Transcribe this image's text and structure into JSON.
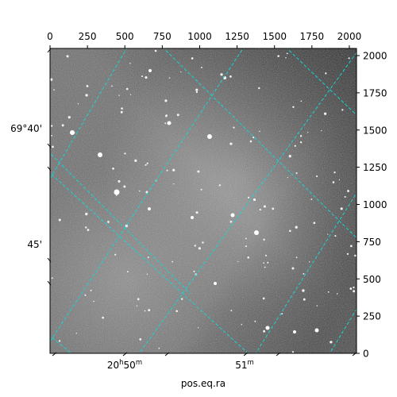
{
  "image": {
    "description_of_content": "",
    "pixel_extent": [
      0,
      2048
    ],
    "top_ticks": [
      "0",
      "250",
      "500",
      "750",
      "1000",
      "1250",
      "1500",
      "1750",
      "2000"
    ],
    "right_ticks": [
      "0",
      "250",
      "500",
      "750",
      "1000",
      "1250",
      "1500",
      "1750",
      "2000"
    ],
    "tick_values": [
      0,
      250,
      500,
      750,
      1000,
      1250,
      1500,
      1750,
      2000
    ]
  },
  "wcs": {
    "dec_label_1": "69°40'",
    "dec_label_2": "45'",
    "ra_label_1_main": "20",
    "ra_label_1_h": "h",
    "ra_label_1_min": "50",
    "ra_label_1_m": "m",
    "ra_label_2_min": "51",
    "ra_label_2_m": "m",
    "xlabel": "pos.eq.ra",
    "grid_color": "#19d3d3"
  }
}
